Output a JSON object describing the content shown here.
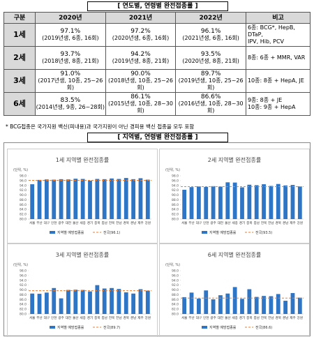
{
  "header": {
    "title": "[ 연도별, 연령별 완전접종률 ]"
  },
  "table": {
    "columns": [
      "구분",
      "2020년",
      "2021년",
      "2022년",
      "비고"
    ],
    "rows": [
      {
        "label": "1세",
        "cells": [
          {
            "rate": "97.1%",
            "detail": "(2019년생, 6종, 16회)"
          },
          {
            "rate": "97.2%",
            "detail": "(2020년생, 6종, 16회)"
          },
          {
            "rate": "96.1%",
            "detail": "(2021년생, 6종, 16회)"
          }
        ],
        "note": [
          "6종: BCG*, HepB, DTaP,",
          "IPV, Hib, PCV"
        ]
      },
      {
        "label": "2세",
        "cells": [
          {
            "rate": "93.7%",
            "detail": "(2018년생, 8종, 21회)"
          },
          {
            "rate": "94.2%",
            "detail": "(2019년생, 8종, 21회)"
          },
          {
            "rate": "93.5%",
            "detail": "(2020년생, 8종, 21회)"
          }
        ],
        "note": [
          "8종: 6종 + MMR, VAR"
        ]
      },
      {
        "label": "3세",
        "cells": [
          {
            "rate": "91.0%",
            "detail": "(2017년생, 10종, 25~26회)"
          },
          {
            "rate": "90.0%",
            "detail": "(2018년생, 10종, 25~26회)"
          },
          {
            "rate": "89.7%",
            "detail": "(2019년생, 10종, 25~26회)"
          }
        ],
        "note": [
          "10종: 8종 + HepA, JE"
        ]
      },
      {
        "label": "6세",
        "cells": [
          {
            "rate": "83.5%",
            "detail": "(2014년생, 9종, 26~28회)"
          },
          {
            "rate": "86.1%",
            "detail": "(2015년생, 10종, 28~30회)"
          },
          {
            "rate": "86.6%",
            "detail": "(2016년생, 10종, 28~30회)"
          }
        ],
        "note": [
          "9종: 8종 + JE",
          "10종: 9종 + HepA"
        ]
      }
    ]
  },
  "footnote": "* BCG접종은 국가지원 백신(피내용)과 국가지원이 아닌 경피용 백신 접종을 모두 포함",
  "section": {
    "title": "[ 지역별, 연령별 완전접종률 ]"
  },
  "chart_data": [
    {
      "type": "bar",
      "title": "1세 지역별 완전접종률",
      "unit": "(단위, %)",
      "categories": [
        "서울",
        "부산",
        "대구",
        "인천",
        "광주",
        "대전",
        "울산",
        "세종",
        "경기",
        "충북",
        "충남",
        "전북",
        "전남",
        "경북",
        "경남",
        "제주",
        "강원"
      ],
      "series": [
        {
          "name": "지역별 예방접종률",
          "color": "#2e75c6",
          "values": [
            94.5,
            96.3,
            96.5,
            96.4,
            96.6,
            96.5,
            96.8,
            96.7,
            96.0,
            96.7,
            96.6,
            96.9,
            96.7,
            97.1,
            96.6,
            97.0,
            96.4
          ]
        }
      ],
      "reference": {
        "name": "전국(96.1)",
        "value": 96.1,
        "color": "#ed7d31"
      },
      "ylim": [
        80,
        98
      ],
      "yticks": [
        {
          "value": 80,
          "label": "80.0"
        },
        {
          "value": 82,
          "label": "82.0"
        },
        {
          "value": 84,
          "label": "84.0"
        },
        {
          "value": 86,
          "label": "86.0"
        },
        {
          "value": 88,
          "label": "88.0"
        },
        {
          "value": 90,
          "label": "90.0"
        },
        {
          "value": 92,
          "label": "92.0"
        },
        {
          "value": 94,
          "label": "94.0"
        },
        {
          "value": 96,
          "label": "96.0"
        },
        {
          "value": 98,
          "label": "98.0"
        }
      ]
    },
    {
      "type": "bar",
      "title": "2세 지역별 완전접종률",
      "unit": "(단위, %)",
      "categories": [
        "서울",
        "부산",
        "대구",
        "인천",
        "광주",
        "대전",
        "울산",
        "세종",
        "경기",
        "충북",
        "충남",
        "전북",
        "전남",
        "경북",
        "경남",
        "제주",
        "강원"
      ],
      "series": [
        {
          "name": "지역별 예방접종률",
          "color": "#2e75c6",
          "values": [
            92.2,
            93.3,
            93.6,
            93.4,
            93.7,
            93.5,
            95.3,
            95.2,
            93.2,
            94.3,
            94.1,
            94.5,
            93.8,
            94.6,
            94.0,
            94.2,
            93.6
          ]
        }
      ],
      "reference": {
        "name": "전국(93.5)",
        "value": 93.5,
        "color": "#ed7d31"
      },
      "ylim": [
        80,
        98
      ],
      "yticks": [
        {
          "value": 80,
          "label": "80.0"
        },
        {
          "value": 82,
          "label": "82.0"
        },
        {
          "value": 84,
          "label": "84.0"
        },
        {
          "value": 86,
          "label": "86.0"
        },
        {
          "value": 88,
          "label": "88.0"
        },
        {
          "value": 90,
          "label": "90.0"
        },
        {
          "value": 92,
          "label": "92.0"
        },
        {
          "value": 94,
          "label": "94.0"
        },
        {
          "value": 96,
          "label": "96.0"
        },
        {
          "value": 98,
          "label": "98.0"
        }
      ]
    },
    {
      "type": "bar",
      "title": "3세 지역별 완전접종률",
      "unit": "(단위, %)",
      "categories": [
        "서울",
        "부산",
        "대구",
        "인천",
        "광주",
        "대전",
        "울산",
        "세종",
        "경기",
        "충북",
        "충남",
        "전북",
        "전남",
        "경북",
        "경남",
        "제주",
        "강원"
      ],
      "series": [
        {
          "name": "지역별 예방접종률",
          "color": "#2e75c6",
          "values": [
            88.5,
            88.4,
            88.9,
            90.8,
            86.5,
            90.0,
            90.1,
            90.0,
            89.4,
            92.0,
            90.6,
            90.8,
            90.4,
            89.0,
            88.5,
            90.3,
            89.7
          ]
        }
      ],
      "reference": {
        "name": "전국(89.7)",
        "value": 89.7,
        "color": "#ed7d31"
      },
      "ylim": [
        80,
        98
      ],
      "yticks": [
        {
          "value": 80,
          "label": "80.0"
        },
        {
          "value": 82,
          "label": "82.0"
        },
        {
          "value": 84,
          "label": "84.0"
        },
        {
          "value": 86,
          "label": "86.0"
        },
        {
          "value": 88,
          "label": "88.0"
        },
        {
          "value": 90,
          "label": "90.0"
        },
        {
          "value": 92,
          "label": "92.0"
        },
        {
          "value": 94,
          "label": "94.0"
        },
        {
          "value": 96,
          "label": "96.0"
        },
        {
          "value": 98,
          "label": "98.0"
        }
      ]
    },
    {
      "type": "bar",
      "title": "6세 지역별 완전접종률",
      "unit": "(단위, %)",
      "categories": [
        "서울",
        "부산",
        "대구",
        "인천",
        "광주",
        "대전",
        "울산",
        "세종",
        "경기",
        "충북",
        "충남",
        "전북",
        "전남",
        "경북",
        "경남",
        "제주",
        "강원"
      ],
      "series": [
        {
          "name": "지역별 예방접종률",
          "color": "#2e75c6",
          "values": [
            87.0,
            88.9,
            86.4,
            89.8,
            86.1,
            87.8,
            88.5,
            91.2,
            86.3,
            90.3,
            87.1,
            87.5,
            87.4,
            88.3,
            85.5,
            88.7,
            86.8
          ]
        }
      ],
      "reference": {
        "name": "전국(86.6)",
        "value": 86.6,
        "color": "#ed7d31"
      },
      "ylim": [
        80,
        98
      ],
      "yticks": [
        {
          "value": 80,
          "label": "80.0"
        },
        {
          "value": 82,
          "label": "82.0"
        },
        {
          "value": 84,
          "label": "84.0"
        },
        {
          "value": 86,
          "label": "86.0"
        },
        {
          "value": 88,
          "label": "88.0"
        },
        {
          "value": 90,
          "label": "90.0"
        },
        {
          "value": 92,
          "label": "92.0"
        },
        {
          "value": 94,
          "label": "94.0"
        },
        {
          "value": 96,
          "label": "96.0"
        },
        {
          "value": 98,
          "label": "98.0"
        }
      ]
    }
  ]
}
